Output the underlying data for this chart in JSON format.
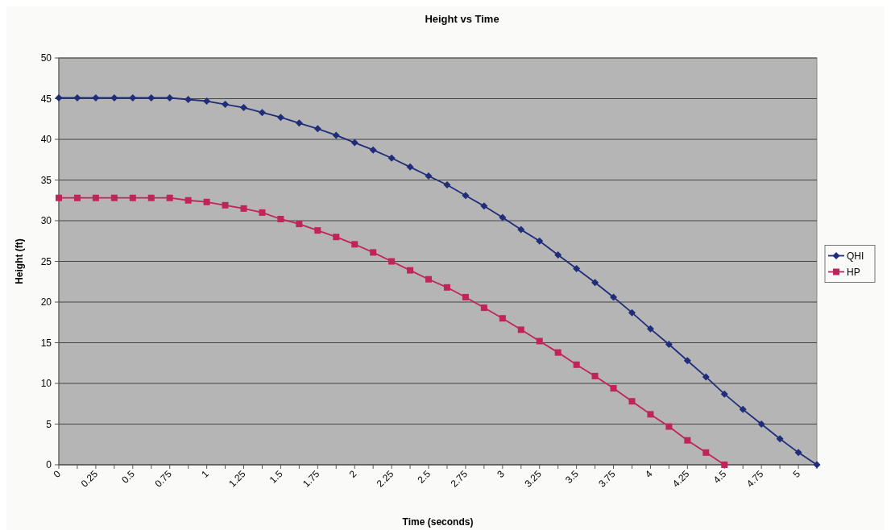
{
  "chart_data": {
    "type": "line",
    "title": "Height vs Time",
    "xlabel": "Time (seconds)",
    "ylabel": "Height (ft)",
    "categories": [
      "0",
      null,
      "0.25",
      null,
      "0.5",
      null,
      "0.75",
      null,
      "1",
      null,
      "1.25",
      null,
      "1.5",
      null,
      "1.75",
      null,
      "2",
      null,
      "2.25",
      null,
      "2.5",
      null,
      "2.75",
      null,
      "3",
      null,
      "3.25",
      null,
      "3.5",
      null,
      "3.75",
      null,
      "4",
      null,
      "4.25",
      null,
      "4.5",
      null,
      "4.75",
      null,
      "5",
      null
    ],
    "series": [
      {
        "name": "QHI",
        "color": "#1f2d7a",
        "marker": "diamond",
        "values": [
          45.1,
          45.1,
          45.1,
          45.1,
          45.1,
          45.1,
          45.1,
          44.9,
          44.7,
          44.3,
          43.9,
          43.3,
          42.7,
          42.0,
          41.3,
          40.5,
          39.6,
          38.7,
          37.7,
          36.6,
          35.5,
          34.4,
          33.1,
          31.8,
          30.4,
          28.9,
          27.5,
          25.8,
          24.1,
          22.4,
          20.6,
          18.7,
          16.7,
          14.8,
          12.8,
          10.8,
          8.7,
          6.8,
          5.0,
          3.2,
          1.5,
          0
        ]
      },
      {
        "name": "HP",
        "color": "#c0245a",
        "marker": "square",
        "values": [
          32.8,
          32.8,
          32.8,
          32.8,
          32.8,
          32.8,
          32.8,
          32.5,
          32.3,
          31.9,
          31.5,
          31.0,
          30.2,
          29.6,
          28.8,
          28.0,
          27.1,
          26.1,
          25.0,
          23.9,
          22.8,
          21.8,
          20.6,
          19.3,
          18.0,
          16.6,
          15.2,
          13.8,
          12.3,
          10.9,
          9.4,
          7.8,
          6.2,
          4.7,
          3.0,
          1.5,
          0,
          null,
          null,
          null,
          null,
          null
        ]
      }
    ],
    "ylim": [
      0,
      50
    ],
    "yticks": [
      0,
      5,
      10,
      15,
      20,
      25,
      30,
      35,
      40,
      45,
      50
    ],
    "grid": "y",
    "legend": "right",
    "line_style": "solid"
  }
}
